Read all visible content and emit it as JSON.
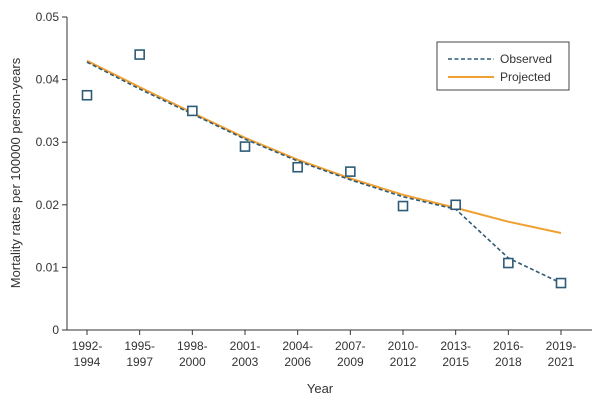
{
  "chart_data": {
    "type": "line",
    "xlabel": "Year",
    "ylabel": "Mortality rates per 100000 person-years",
    "ylim": [
      0,
      0.05
    ],
    "yticks": [
      "0",
      "0.01",
      "0.02",
      "0.03",
      "0.04",
      "0.05"
    ],
    "categories": [
      [
        "1992-",
        "1994"
      ],
      [
        "1995-",
        "1997"
      ],
      [
        "1998-",
        "2000"
      ],
      [
        "2001-",
        "2003"
      ],
      [
        "2004-",
        "2006"
      ],
      [
        "2007-",
        "2009"
      ],
      [
        "2010-",
        "2012"
      ],
      [
        "2013-",
        "2015"
      ],
      [
        "2016-",
        "2018"
      ],
      [
        "2019-",
        "2021"
      ]
    ],
    "points": [
      0.0375,
      0.044,
      0.035,
      0.0293,
      0.026,
      0.0253,
      0.0198,
      0.02,
      0.0107,
      0.0075
    ],
    "series": [
      {
        "name": "Observed",
        "style": "dashed",
        "color": "#2e5b77",
        "values": [
          0.0428,
          0.0385,
          0.0345,
          0.0305,
          0.027,
          0.024,
          0.0213,
          0.0193,
          0.0115,
          0.0075
        ]
      },
      {
        "name": "Projected",
        "style": "solid",
        "color": "#f0a030",
        "values": [
          0.043,
          0.0388,
          0.0347,
          0.0307,
          0.0272,
          0.0242,
          0.0216,
          0.0195,
          0.0173,
          0.0155
        ]
      }
    ],
    "legend_position": "top-right",
    "grid": false
  }
}
